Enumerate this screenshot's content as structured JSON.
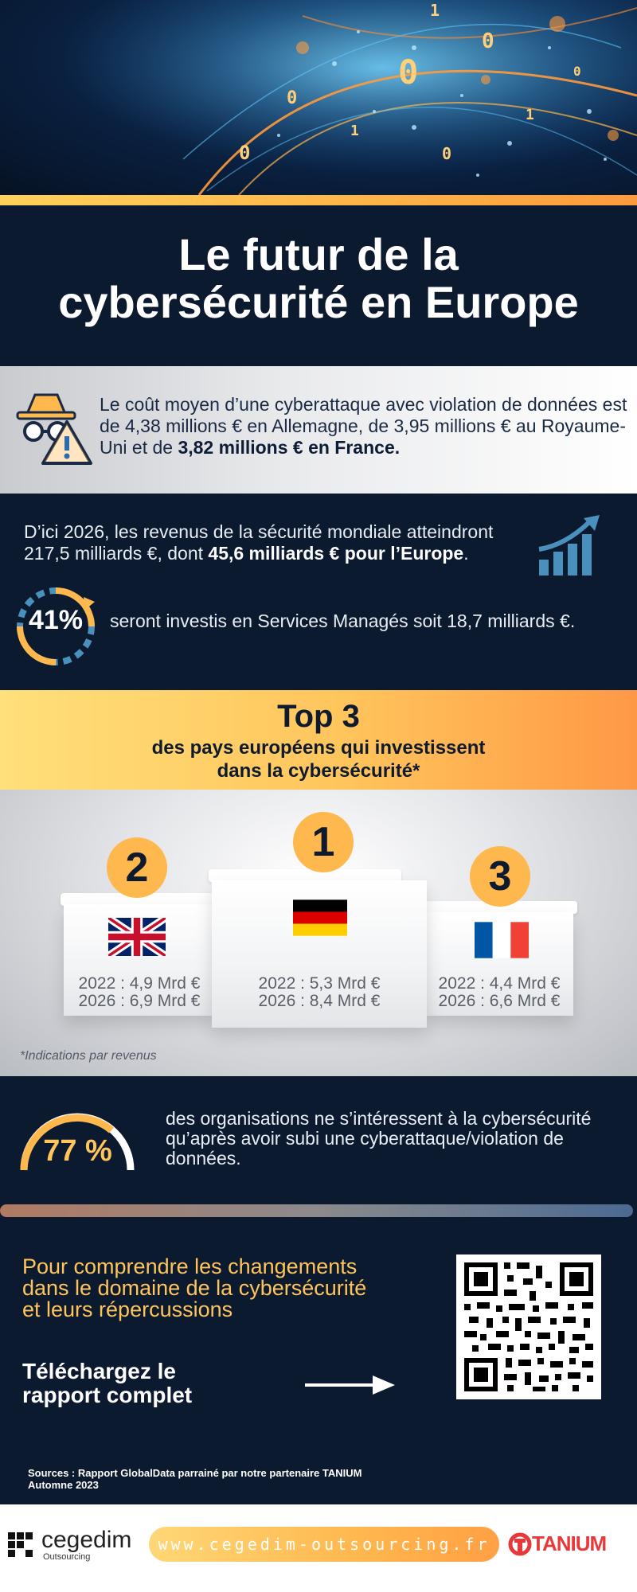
{
  "title": {
    "line1": "Le futur de la",
    "line2": "cybersécurité en Europe"
  },
  "cost": {
    "text": "Le coût moyen d’une cyberattaque avec violation de données est de 4,38 millions € en Allemagne, de 3,95 millions € au Royaume-Uni et de ",
    "bold": "3,82 millions € en France."
  },
  "revenue": {
    "text": "D’ici 2026, les revenus de la sécurité mondiale atteindront 217,5 milliards €, dont ",
    "bold": "45,6 milliards € pour l’Europe",
    "end": "."
  },
  "managed": {
    "percent_label": "41%",
    "percent_value": 41,
    "text": "seront investis en Services Managés soit 18,7 milliards €."
  },
  "top3": {
    "title": "Top 3",
    "subtitle_line1": "des pays européens qui investissent",
    "subtitle_line2": "dans  la cybersécurité*",
    "footnote": "*Indications par revenus",
    "podium": [
      {
        "rank": "2",
        "country": "uk-flag",
        "v2022": "2022 : 4,9 Mrd €",
        "v2026": "2026 : 6,9 Mrd €"
      },
      {
        "rank": "1",
        "country": "germany-flag",
        "v2022": "2022 : 5,3 Mrd €",
        "v2026": "2026 : 8,4 Mrd €"
      },
      {
        "rank": "3",
        "country": "france-flag",
        "v2022": "2022 : 4,4 Mrd €",
        "v2026": "2026 : 6,6 Mrd €"
      }
    ]
  },
  "orgs": {
    "percent_label": "77 %",
    "percent_value": 77,
    "text": "des organisations ne s’intéressent à la cybersécurité qu’après avoir subi une cyberattaque/violation de données."
  },
  "cta": {
    "line1": "Pour comprendre les changements",
    "line2": "dans le domaine de la cybersécurité",
    "line3": "et leurs répercussions",
    "download_line1": "Téléchargez le",
    "download_line2": "rapport complet"
  },
  "sources": {
    "line1": "Sources : Rapport GlobalData parrainé par notre partenaire TANIUM",
    "line2": "Automne 2023"
  },
  "footer": {
    "logo_name": "cegedim",
    "logo_sub": "Outsourcing",
    "url": "www.cegedim-outsourcing.fr",
    "partner": "TANIUM"
  },
  "colors": {
    "navy": "#0c1a30",
    "accent_orange": "#ffb84d",
    "accent_yellow": "#ffc55a",
    "tanium_red": "#e8393a"
  }
}
